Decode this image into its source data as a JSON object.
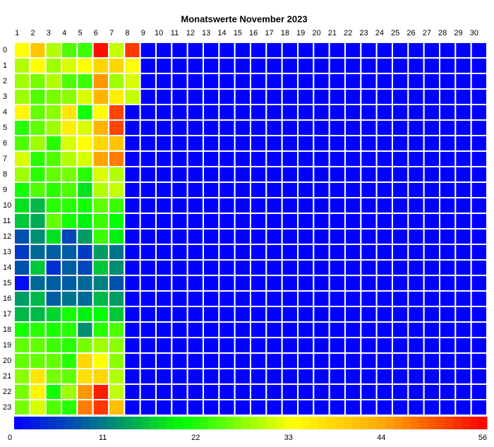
{
  "chart_data": {
    "type": "heatmap",
    "title": "Monatswerte November 2023",
    "x": [
      1,
      2,
      3,
      4,
      5,
      6,
      7,
      8,
      9,
      10,
      11,
      12,
      13,
      14,
      15,
      16,
      17,
      18,
      19,
      20,
      21,
      22,
      23,
      24,
      25,
      26,
      27,
      28,
      29,
      30
    ],
    "y": [
      0,
      1,
      2,
      3,
      4,
      5,
      6,
      7,
      8,
      9,
      10,
      11,
      12,
      13,
      14,
      15,
      16,
      17,
      18,
      19,
      20,
      21,
      22,
      23
    ],
    "values": [
      [
        33,
        40,
        29,
        24,
        23,
        55,
        30,
        52,
        null,
        null,
        null,
        null,
        null,
        null,
        null,
        null,
        null,
        null,
        null,
        null,
        null,
        null,
        null,
        null,
        null,
        null,
        null,
        null,
        null,
        null
      ],
      [
        29,
        33,
        28,
        31,
        33,
        38,
        38,
        33,
        null,
        null,
        null,
        null,
        null,
        null,
        null,
        null,
        null,
        null,
        null,
        null,
        null,
        null,
        null,
        null,
        null,
        null,
        null,
        null,
        null,
        null
      ],
      [
        28,
        26,
        29,
        24,
        23,
        45,
        28,
        31,
        null,
        null,
        null,
        null,
        null,
        null,
        null,
        null,
        null,
        null,
        null,
        null,
        null,
        null,
        null,
        null,
        null,
        null,
        null,
        null,
        null,
        null
      ],
      [
        28,
        24,
        26,
        27,
        31,
        42,
        35,
        30,
        null,
        null,
        null,
        null,
        null,
        null,
        null,
        null,
        null,
        null,
        null,
        null,
        null,
        null,
        null,
        null,
        null,
        null,
        null,
        null,
        null,
        null
      ],
      [
        34,
        25,
        27,
        36,
        21,
        33,
        51,
        null,
        null,
        null,
        null,
        null,
        null,
        null,
        null,
        null,
        null,
        null,
        null,
        null,
        null,
        null,
        null,
        null,
        null,
        null,
        null,
        null,
        null,
        null
      ],
      [
        22,
        25,
        28,
        35,
        31,
        42,
        51,
        null,
        null,
        null,
        null,
        null,
        null,
        null,
        null,
        null,
        null,
        null,
        null,
        null,
        null,
        null,
        null,
        null,
        null,
        null,
        null,
        null,
        null,
        null
      ],
      [
        24,
        28,
        22,
        31,
        33,
        38,
        40,
        null,
        null,
        null,
        null,
        null,
        null,
        null,
        null,
        null,
        null,
        null,
        null,
        null,
        null,
        null,
        null,
        null,
        null,
        null,
        null,
        null,
        null,
        null
      ],
      [
        31,
        22,
        24,
        29,
        31,
        44,
        47,
        null,
        null,
        null,
        null,
        null,
        null,
        null,
        null,
        null,
        null,
        null,
        null,
        null,
        null,
        null,
        null,
        null,
        null,
        null,
        null,
        null,
        null,
        null
      ],
      [
        28,
        22,
        25,
        26,
        22,
        31,
        29,
        null,
        null,
        null,
        null,
        null,
        null,
        null,
        null,
        null,
        null,
        null,
        null,
        null,
        null,
        null,
        null,
        null,
        null,
        null,
        null,
        null,
        null,
        null
      ],
      [
        21,
        24,
        22,
        24,
        18,
        29,
        30,
        null,
        null,
        null,
        null,
        null,
        null,
        null,
        null,
        null,
        null,
        null,
        null,
        null,
        null,
        null,
        null,
        null,
        null,
        null,
        null,
        null,
        null,
        null
      ],
      [
        18,
        15,
        22,
        22,
        21,
        25,
        23,
        null,
        null,
        null,
        null,
        null,
        null,
        null,
        null,
        null,
        null,
        null,
        null,
        null,
        null,
        null,
        null,
        null,
        null,
        null,
        null,
        null,
        null,
        null
      ],
      [
        16,
        14,
        25,
        21,
        19,
        23,
        20,
        null,
        null,
        null,
        null,
        null,
        null,
        null,
        null,
        null,
        null,
        null,
        null,
        null,
        null,
        null,
        null,
        null,
        null,
        null,
        null,
        null,
        null,
        null
      ],
      [
        7,
        12,
        18,
        6,
        13,
        23,
        19,
        null,
        null,
        null,
        null,
        null,
        null,
        null,
        null,
        null,
        null,
        null,
        null,
        null,
        null,
        null,
        null,
        null,
        null,
        null,
        null,
        null,
        null,
        null
      ],
      [
        5,
        9,
        8,
        8,
        5,
        13,
        10,
        null,
        null,
        null,
        null,
        null,
        null,
        null,
        null,
        null,
        null,
        null,
        null,
        null,
        null,
        null,
        null,
        null,
        null,
        null,
        null,
        null,
        null,
        null
      ],
      [
        7,
        16,
        4,
        8,
        6,
        16,
        12,
        null,
        null,
        null,
        null,
        null,
        null,
        null,
        null,
        null,
        null,
        null,
        null,
        null,
        null,
        null,
        null,
        null,
        null,
        null,
        null,
        null,
        null,
        null
      ],
      [
        1,
        9,
        8,
        8,
        9,
        11,
        7,
        null,
        null,
        null,
        null,
        null,
        null,
        null,
        null,
        null,
        null,
        null,
        null,
        null,
        null,
        null,
        null,
        null,
        null,
        null,
        null,
        null,
        null,
        null
      ],
      [
        13,
        15,
        8,
        10,
        9,
        15,
        13,
        null,
        null,
        null,
        null,
        null,
        null,
        null,
        null,
        null,
        null,
        null,
        null,
        null,
        null,
        null,
        null,
        null,
        null,
        null,
        null,
        null,
        null,
        null
      ],
      [
        15,
        15,
        17,
        21,
        19,
        20,
        16,
        null,
        null,
        null,
        null,
        null,
        null,
        null,
        null,
        null,
        null,
        null,
        null,
        null,
        null,
        null,
        null,
        null,
        null,
        null,
        null,
        null,
        null,
        null
      ],
      [
        21,
        22,
        21,
        22,
        12,
        22,
        24,
        null,
        null,
        null,
        null,
        null,
        null,
        null,
        null,
        null,
        null,
        null,
        null,
        null,
        null,
        null,
        null,
        null,
        null,
        null,
        null,
        null,
        null,
        null
      ],
      [
        25,
        25,
        23,
        22,
        26,
        28,
        27,
        null,
        null,
        null,
        null,
        null,
        null,
        null,
        null,
        null,
        null,
        null,
        null,
        null,
        null,
        null,
        null,
        null,
        null,
        null,
        null,
        null,
        null,
        null
      ],
      [
        25,
        25,
        25,
        22,
        38,
        33,
        27,
        null,
        null,
        null,
        null,
        null,
        null,
        null,
        null,
        null,
        null,
        null,
        null,
        null,
        null,
        null,
        null,
        null,
        null,
        null,
        null,
        null,
        null,
        null
      ],
      [
        27,
        36,
        26,
        25,
        37,
        38,
        29,
        null,
        null,
        null,
        null,
        null,
        null,
        null,
        null,
        null,
        null,
        null,
        null,
        null,
        null,
        null,
        null,
        null,
        null,
        null,
        null,
        null,
        null,
        null
      ],
      [
        26,
        34,
        21,
        28,
        45,
        54,
        30,
        null,
        null,
        null,
        null,
        null,
        null,
        null,
        null,
        null,
        null,
        null,
        null,
        null,
        null,
        null,
        null,
        null,
        null,
        null,
        null,
        null,
        null,
        null
      ],
      [
        26,
        31,
        24,
        22,
        47,
        52,
        41,
        null,
        null,
        null,
        null,
        null,
        null,
        null,
        null,
        null,
        null,
        null,
        null,
        null,
        null,
        null,
        null,
        null,
        null,
        null,
        null,
        null,
        null,
        null
      ]
    ],
    "zlim": [
      0,
      56
    ],
    "zticks": [
      0,
      11,
      22,
      33,
      44,
      56
    ],
    "colorscale": [
      [
        0,
        "#0000ff"
      ],
      [
        11,
        "#008080"
      ],
      [
        20,
        "#00ff00"
      ],
      [
        33,
        "#ffff00"
      ],
      [
        44,
        "#ffa500"
      ],
      [
        56,
        "#ff0000"
      ]
    ]
  }
}
